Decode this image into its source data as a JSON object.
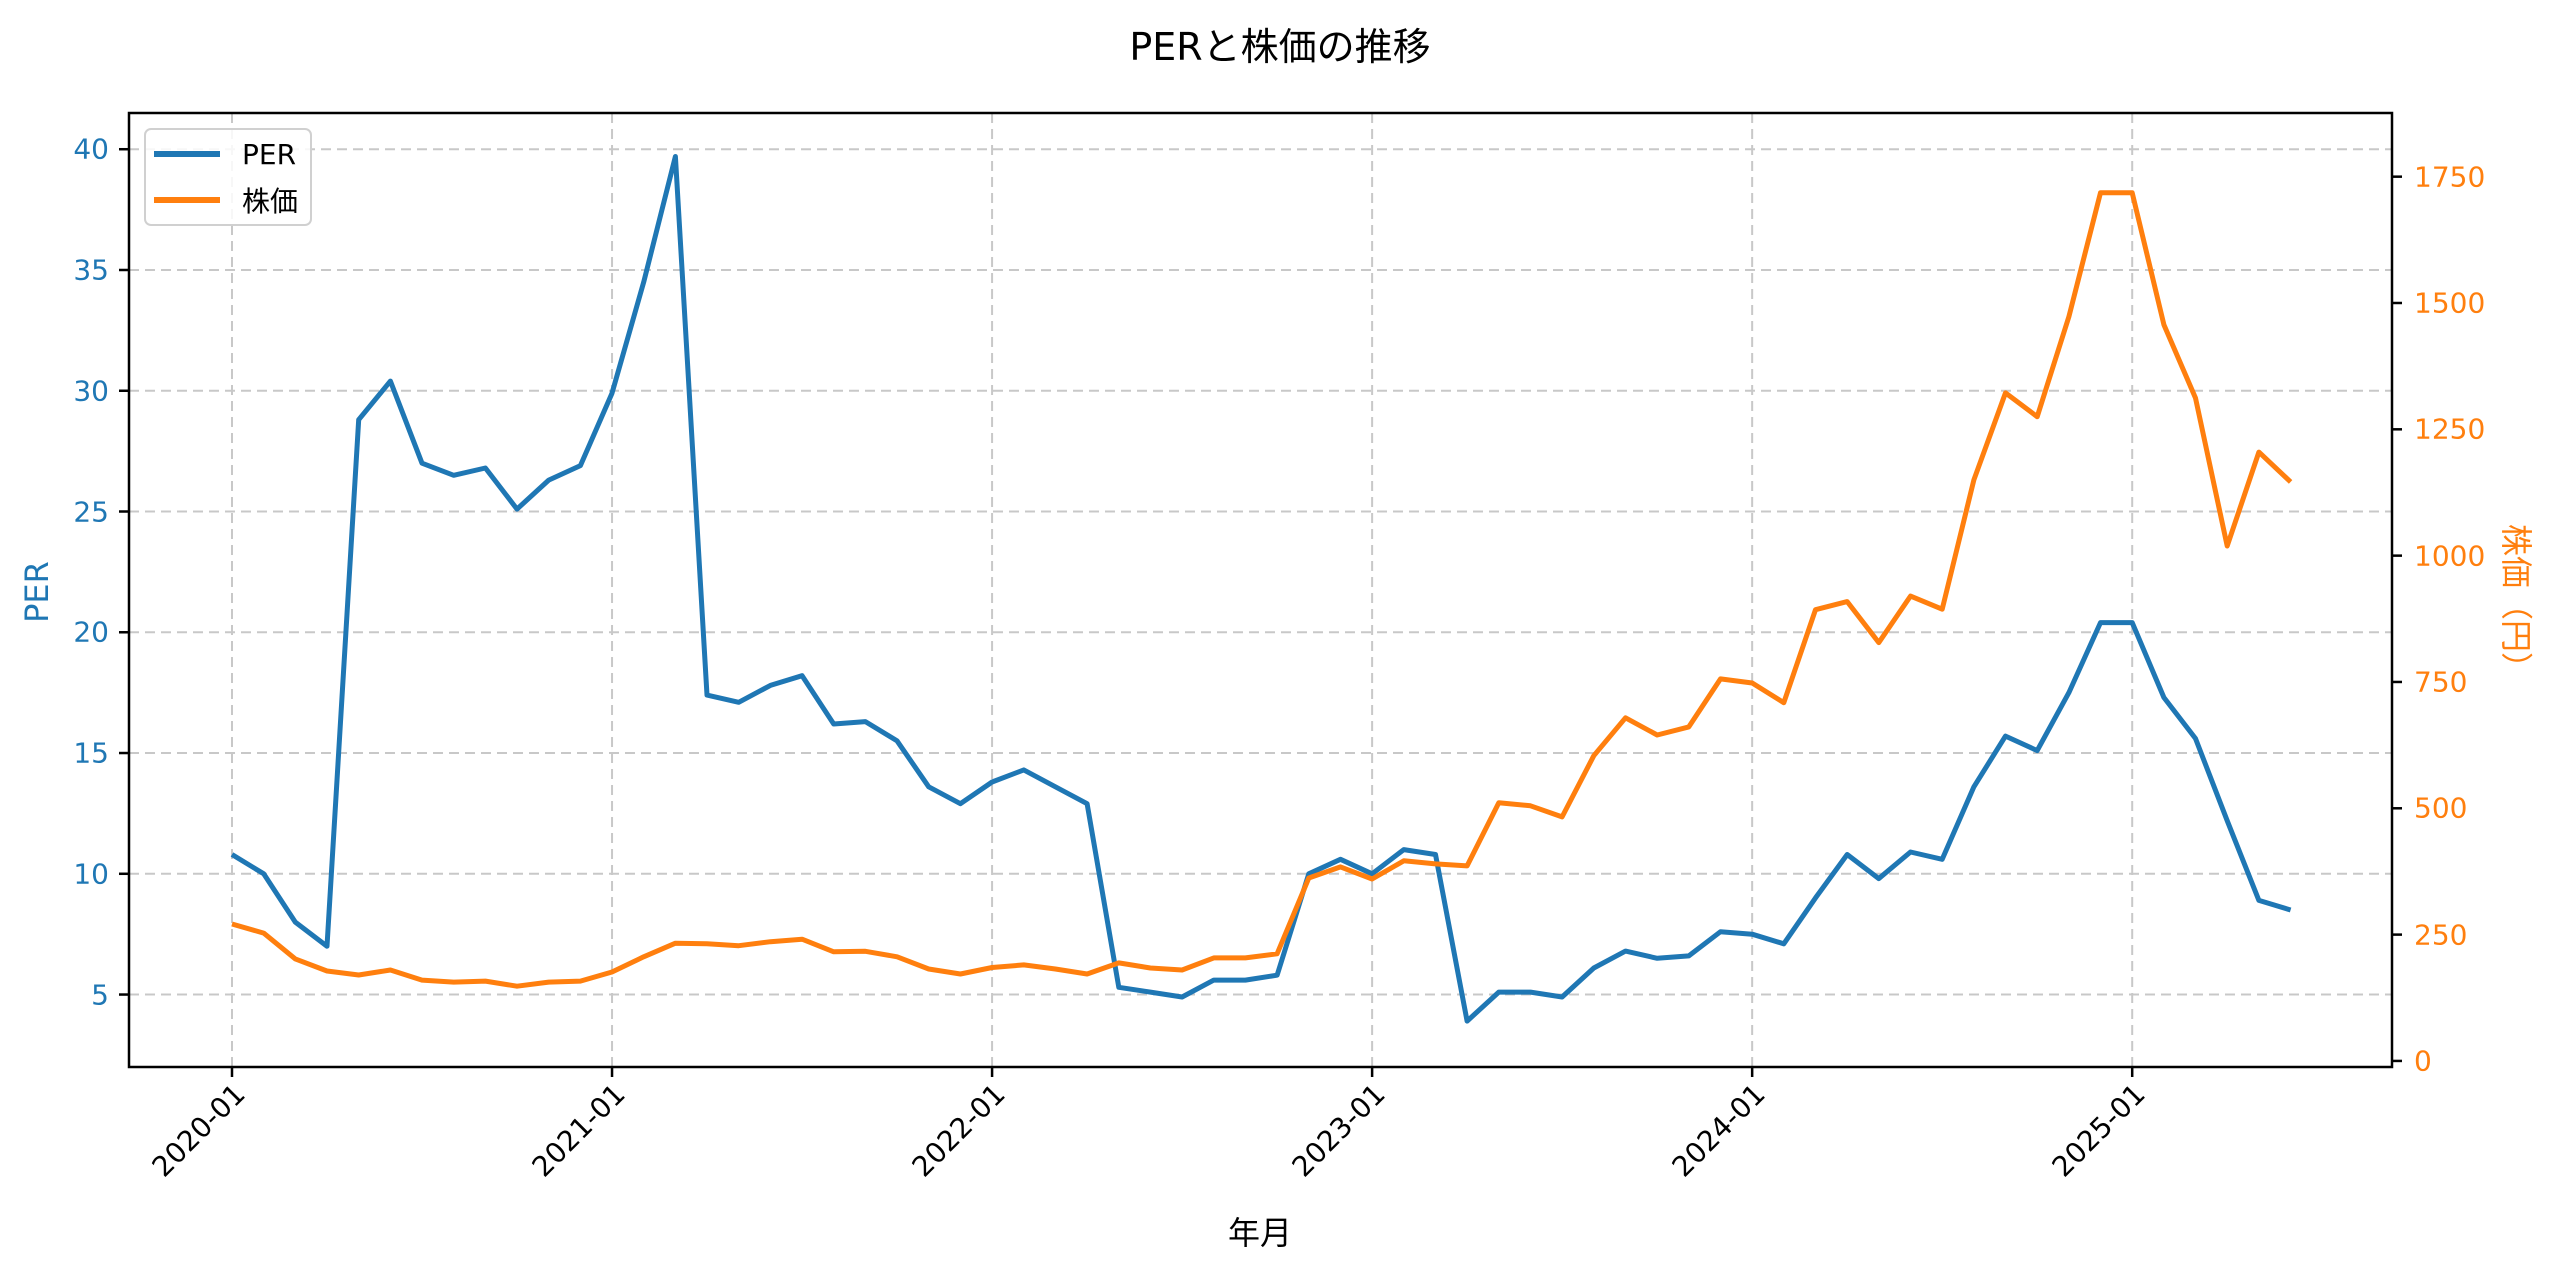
{
  "chart_data": {
    "type": "line",
    "title": "PERと株価の推移",
    "xlabel": "年月",
    "ylabel_left": "PER",
    "ylabel_right": "株価（円）",
    "legend_position": "upper left",
    "grid": true,
    "xticks": [
      "2020-01",
      "2021-01",
      "2022-01",
      "2023-01",
      "2024-01",
      "2025-01"
    ],
    "yticks_left": [
      5,
      10,
      15,
      20,
      25,
      30,
      35,
      40
    ],
    "yticks_right": [
      0,
      250,
      500,
      750,
      1000,
      1250,
      1500,
      1750
    ],
    "ylim_left": [
      2.0,
      41.5
    ],
    "ylim_right": [
      -12,
      1876
    ],
    "x": [
      "2020-01",
      "2020-02",
      "2020-03",
      "2020-04",
      "2020-05",
      "2020-06",
      "2020-07",
      "2020-08",
      "2020-09",
      "2020-10",
      "2020-11",
      "2020-12",
      "2021-01",
      "2021-02",
      "2021-03",
      "2021-04",
      "2021-05",
      "2021-06",
      "2021-07",
      "2021-08",
      "2021-09",
      "2021-10",
      "2021-11",
      "2021-12",
      "2022-01",
      "2022-02",
      "2022-03",
      "2022-04",
      "2022-05",
      "2022-06",
      "2022-07",
      "2022-08",
      "2022-09",
      "2022-10",
      "2022-11",
      "2022-12",
      "2023-01",
      "2023-02",
      "2023-03",
      "2023-04",
      "2023-05",
      "2023-06",
      "2023-07",
      "2023-08",
      "2023-09",
      "2023-10",
      "2023-11",
      "2023-12",
      "2024-01",
      "2024-02",
      "2024-03",
      "2024-04",
      "2024-05",
      "2024-06",
      "2024-07",
      "2024-08",
      "2024-09",
      "2024-10",
      "2024-11",
      "2024-12",
      "2025-01",
      "2025-02",
      "2025-03",
      "2025-04",
      "2025-05",
      "2025-06"
    ],
    "series": [
      {
        "name": "PER",
        "axis": "left",
        "color": "#1f77b4",
        "values": [
          10.8,
          10.0,
          8.0,
          7.0,
          28.8,
          30.4,
          27.0,
          26.5,
          26.8,
          25.1,
          26.3,
          26.9,
          29.9,
          34.5,
          39.7,
          17.4,
          17.1,
          17.8,
          18.2,
          16.2,
          16.3,
          15.5,
          13.6,
          12.9,
          13.8,
          14.3,
          13.6,
          12.9,
          5.3,
          5.1,
          4.9,
          5.6,
          5.6,
          5.8,
          10.0,
          10.6,
          10.0,
          11.0,
          10.8,
          3.9,
          5.1,
          5.1,
          4.9,
          6.1,
          6.8,
          6.5,
          6.6,
          7.6,
          7.5,
          7.1,
          9.0,
          10.8,
          9.8,
          10.9,
          10.6,
          13.6,
          15.7,
          15.1,
          17.5,
          20.4,
          20.4,
          17.3,
          15.6,
          12.2,
          8.9,
          8.5
        ]
      },
      {
        "name": "株価",
        "axis": "right",
        "color": "#ff7f0e",
        "values": [
          271,
          253,
          202,
          178,
          170,
          180,
          160,
          156,
          158,
          148,
          156,
          158,
          176,
          206,
          233,
          232,
          228,
          236,
          241,
          216,
          217,
          206,
          182,
          172,
          185,
          190,
          182,
          172,
          194,
          184,
          180,
          204,
          204,
          212,
          362,
          384,
          360,
          396,
          390,
          386,
          511,
          505,
          483,
          604,
          679,
          645,
          661,
          756,
          748,
          709,
          893,
          909,
          828,
          920,
          894,
          1150,
          1322,
          1275,
          1473,
          1718,
          1718,
          1457,
          1312,
          1019,
          1205,
          1146
        ]
      }
    ]
  },
  "legend": {
    "items": [
      {
        "label": "PER",
        "color": "#1f77b4"
      },
      {
        "label": "株価",
        "color": "#ff7f0e"
      }
    ]
  },
  "colors": {
    "per": "#1f77b4",
    "price": "#ff7f0e",
    "grid": "#c8c8c8",
    "axis": "#000000"
  }
}
